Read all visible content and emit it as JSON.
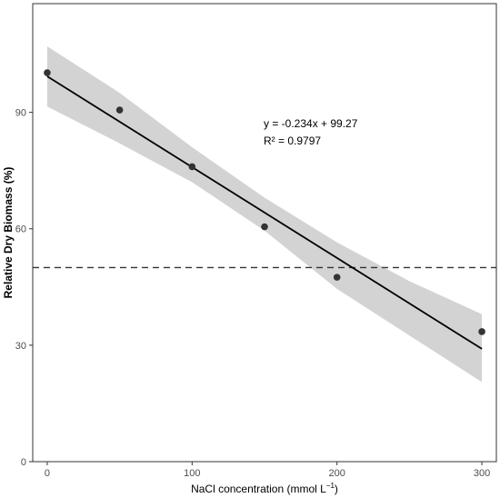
{
  "chart_data": {
    "type": "scatter",
    "title": "",
    "xlabel": "NaCl concentration (mmol L",
    "xlabel_superscript": "−1",
    "xlabel_suffix": ")",
    "ylabel": "Relative Dry Biomass (%)",
    "xlim": [
      -10,
      310
    ],
    "ylim": [
      0,
      118
    ],
    "xticks": [
      0,
      100,
      200,
      300
    ],
    "yticks": [
      0,
      30,
      60,
      90
    ],
    "grid": false,
    "points": [
      {
        "x": 0,
        "y": 100.2
      },
      {
        "x": 50,
        "y": 90.6
      },
      {
        "x": 100,
        "y": 76.0
      },
      {
        "x": 150,
        "y": 60.5
      },
      {
        "x": 200,
        "y": 47.5
      },
      {
        "x": 300,
        "y": 33.5
      }
    ],
    "fit": {
      "slope": -0.234,
      "intercept": 99.27,
      "x_range": [
        0,
        300
      ],
      "equation_label": "y = -0.234x + 99.27",
      "r2_label": "R² = 0.9797"
    },
    "confidence_band": [
      {
        "x": 0,
        "lo": 91.5,
        "hi": 107.0
      },
      {
        "x": 50,
        "lo": 82.0,
        "hi": 95.0
      },
      {
        "x": 100,
        "lo": 72.0,
        "hi": 81.0
      },
      {
        "x": 150,
        "lo": 59.5,
        "hi": 68.0
      },
      {
        "x": 200,
        "lo": 44.5,
        "hi": 56.5
      },
      {
        "x": 250,
        "lo": 32.5,
        "hi": 46.5
      },
      {
        "x": 300,
        "lo": 20.5,
        "hi": 38.0
      }
    ],
    "reference_line": {
      "y": 50,
      "style": "dashed"
    },
    "colors": {
      "points": "#333333",
      "fit_line": "#000000",
      "band": "#d3d3d3",
      "reference_line": "#333333",
      "panel_border": "#333333"
    }
  }
}
